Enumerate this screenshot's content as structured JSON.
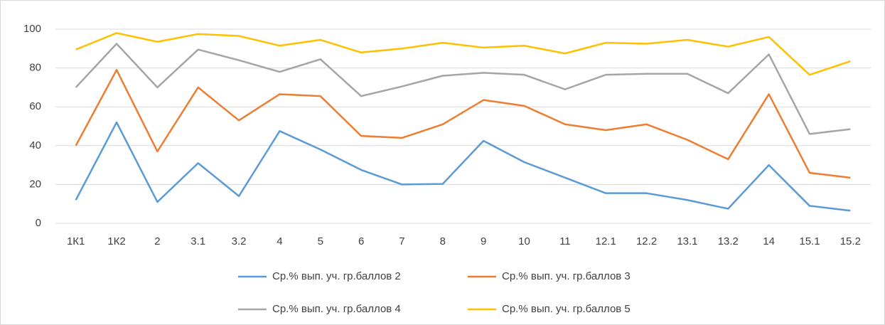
{
  "chart_data": {
    "type": "line",
    "categories": [
      "1К1",
      "1К2",
      "2",
      "3.1",
      "3.2",
      "4",
      "5",
      "6",
      "7",
      "8",
      "9",
      "10",
      "11",
      "12.1",
      "12.2",
      "13.1",
      "13.2",
      "14",
      "15.1",
      "15.2"
    ],
    "series": [
      {
        "name": "Ср.% вып. уч. гр.баллов 2",
        "color": "#5b9bd5",
        "values": [
          12,
          52,
          11,
          31,
          14,
          47.5,
          38,
          27.5,
          20,
          20.3,
          42.5,
          31.5,
          23.5,
          15.5,
          15.5,
          12,
          7.5,
          30,
          9,
          6.5
        ]
      },
      {
        "name": "Ср.% вып. уч. гр.баллов 3",
        "color": "#ed7d31",
        "values": [
          40,
          79,
          37,
          70,
          53,
          66.5,
          65.5,
          45,
          44,
          51,
          63.5,
          60.5,
          51,
          48,
          51,
          43,
          33,
          66.5,
          26,
          23.5
        ]
      },
      {
        "name": "Ср.% вып. уч. гр.баллов 4",
        "color": "#a5a5a5",
        "values": [
          70,
          92.5,
          70,
          89.5,
          84,
          78,
          84.5,
          65.5,
          70.5,
          76,
          77.5,
          76.5,
          69,
          76.5,
          77,
          77,
          67,
          87,
          46,
          48.5
        ]
      },
      {
        "name": "Ср.% вып. уч. гр.баллов 5",
        "color": "#ffc000",
        "values": [
          89.5,
          98,
          93.5,
          97.5,
          96.5,
          91.5,
          94.5,
          88,
          90,
          93,
          90.5,
          91.5,
          87.5,
          93,
          92.5,
          94.5,
          91,
          96,
          76.5,
          83.5
        ]
      }
    ],
    "ylim": [
      0,
      100
    ],
    "yticks": [
      0,
      20,
      40,
      60,
      80,
      100
    ],
    "grid": true
  }
}
